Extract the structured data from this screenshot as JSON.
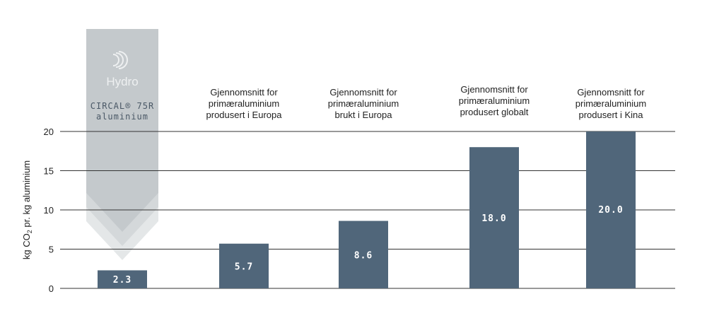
{
  "chart_data": {
    "type": "bar",
    "ylabel": "kg CO",
    "ylabel_sub": "2",
    "ylabel_rest": " pr. kg aluminium",
    "ylim": [
      0,
      20
    ],
    "yticks": [
      0,
      5,
      10,
      15,
      20
    ],
    "grid": true,
    "highlight": {
      "logo_text": "Hydro",
      "product_line1": "CIRCAL® 75R",
      "product_line2": "aluminium"
    },
    "categories": [
      {
        "label_lines": []
      },
      {
        "label_lines": [
          "Gjennomsnitt for",
          "primæraluminium",
          "produsert i Europa"
        ]
      },
      {
        "label_lines": [
          "Gjennomsnitt for",
          "primæraluminium",
          "brukt i Europa"
        ]
      },
      {
        "label_lines": [
          "Gjennomsnitt for",
          "primæraluminium",
          "produsert globalt"
        ]
      },
      {
        "label_lines": [
          "Gjennomsnitt for",
          "primæraluminium",
          "produsert i Kina"
        ]
      }
    ],
    "values": [
      2.3,
      5.7,
      8.6,
      18.0,
      20.0
    ],
    "value_labels": [
      "2.3",
      "5.7",
      "8.6",
      "18.0",
      "20.0"
    ],
    "colors": {
      "bar": "#50667a",
      "highlight_band": "#c4c9cc",
      "grid": "#333333"
    }
  }
}
